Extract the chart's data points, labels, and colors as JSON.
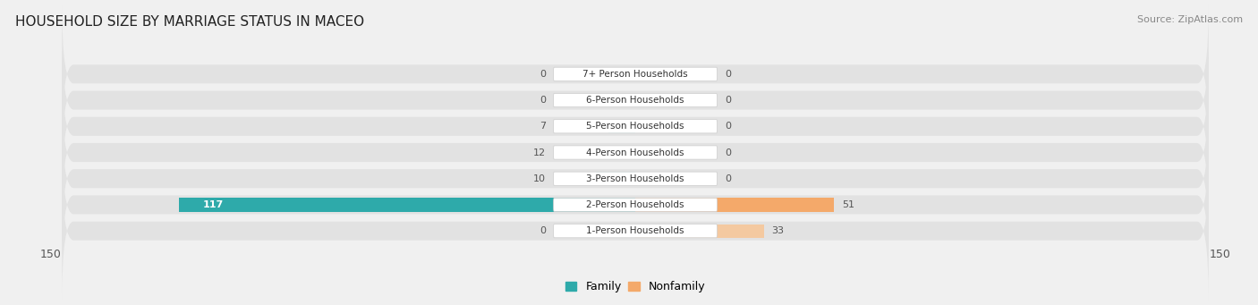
{
  "title": "HOUSEHOLD SIZE BY MARRIAGE STATUS IN MACEO",
  "source": "Source: ZipAtlas.com",
  "categories": [
    "7+ Person Households",
    "6-Person Households",
    "5-Person Households",
    "4-Person Households",
    "3-Person Households",
    "2-Person Households",
    "1-Person Households"
  ],
  "family_values": [
    0,
    0,
    7,
    12,
    10,
    117,
    0
  ],
  "nonfamily_values": [
    0,
    0,
    0,
    0,
    0,
    51,
    33
  ],
  "family_color": "#2EAAAA",
  "nonfamily_color": "#F4A96A",
  "family_color_light": "#7ECECE",
  "nonfamily_color_light": "#F4C9A0",
  "axis_limit": 150,
  "bg_color": "#f0f0f0",
  "row_bg_color": "#e2e2e2",
  "label_bg_color": "#ffffff"
}
